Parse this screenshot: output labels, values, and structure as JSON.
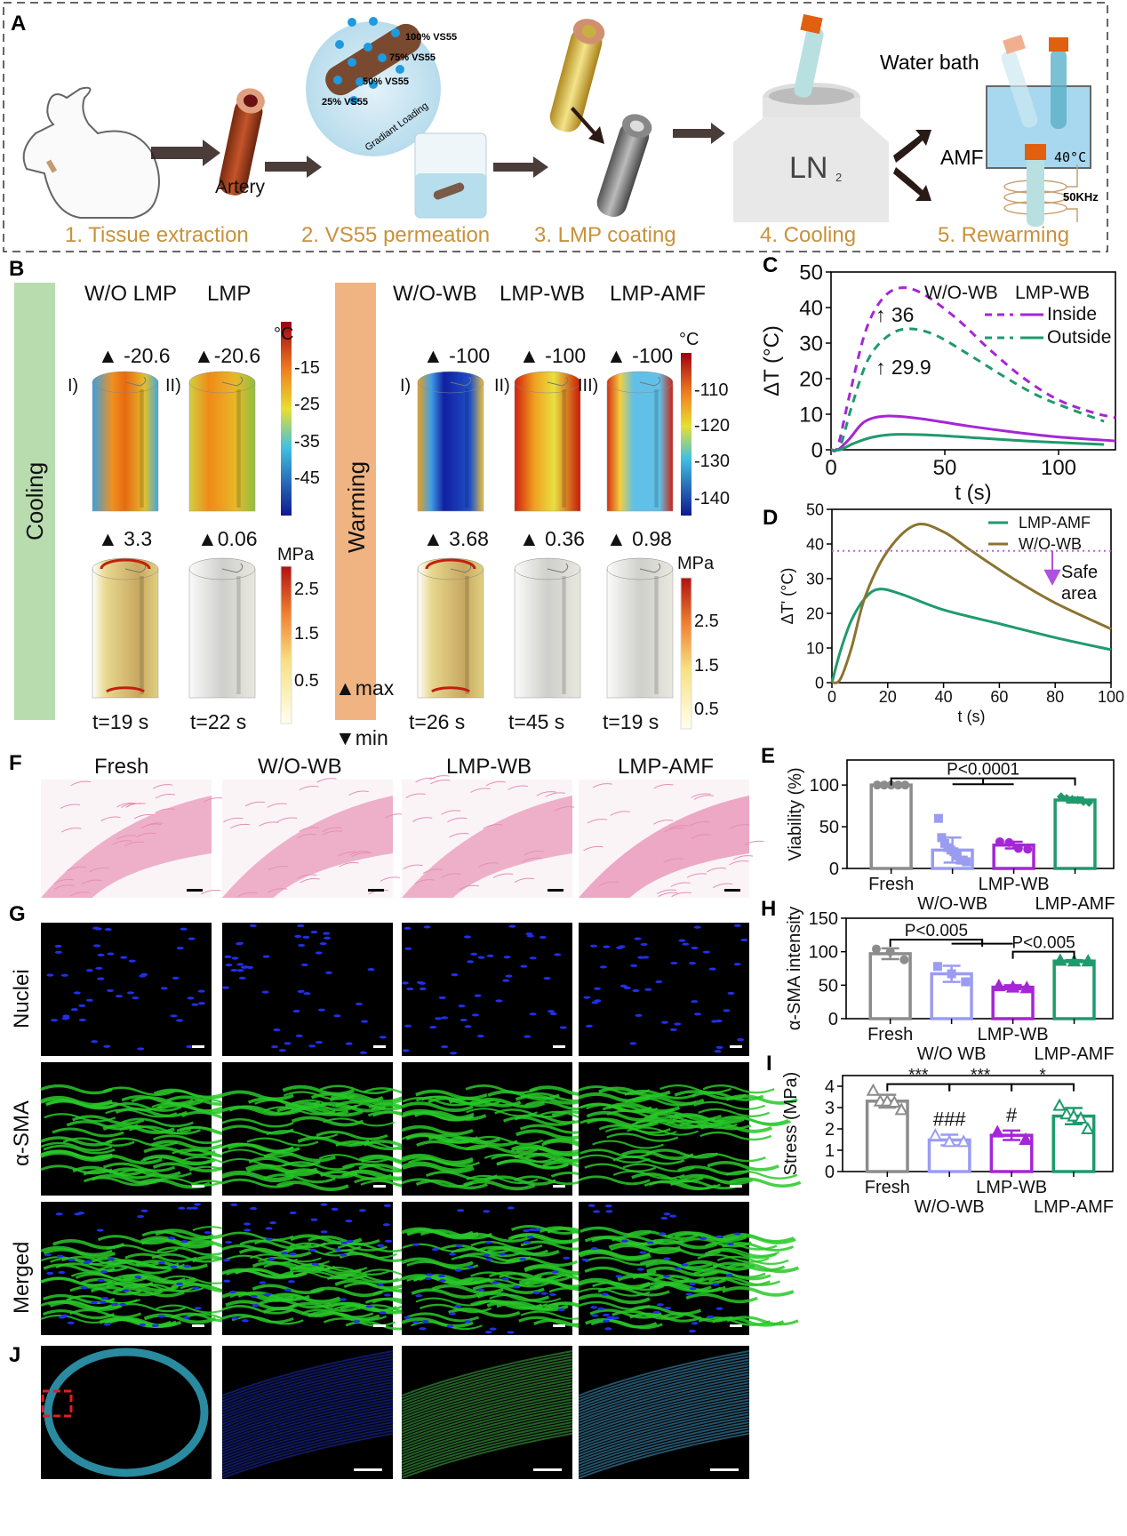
{
  "panel_labels": {
    "A": "A",
    "B": "B",
    "C": "C",
    "D": "D",
    "E": "E",
    "F": "F",
    "G": "G",
    "H": "H",
    "I": "I",
    "J": "J"
  },
  "panel_a": {
    "artery": "Artery",
    "vs55": [
      "100% VS55",
      "75% VS55",
      "50% VS55",
      "25% VS55"
    ],
    "gradient": "Gradiant  Loading",
    "ln2": "LN",
    "ln2_sub": "2",
    "water_bath": "Water bath",
    "temp_display": "40°C",
    "amf": "AMF",
    "freq": "50KHz",
    "steps": [
      "1. Tissue  extraction",
      "2. VS55 permeation",
      "3. LMP coating",
      "4. Cooling",
      "5. Rewarming"
    ],
    "step_color": "#c8923a"
  },
  "panel_b": {
    "cooling": "Cooling",
    "warming": "Warming",
    "cooling_headers": [
      "W/O LMP",
      "LMP"
    ],
    "warming_headers": [
      "W/O-WB",
      "LMP-WB",
      "LMP-AMF"
    ],
    "cooling_roman": [
      "I)",
      "II)"
    ],
    "warming_roman": [
      "I)",
      "II)",
      "III)"
    ],
    "cooling_temp_max": [
      "▲ -20.6",
      "▲-20.6"
    ],
    "warming_temp_max": [
      "▲ -100",
      "▲ -100",
      "▲ -100"
    ],
    "cooling_stress_max": [
      "▲ 3.3",
      "▲0.06"
    ],
    "warming_stress_max": [
      "▲ 3.68",
      "▲ 0.36",
      "▲ 0.98"
    ],
    "cooling_times": [
      "t=19 s",
      "t=22 s"
    ],
    "warming_times": [
      "t=26 s",
      "t=45 s",
      "t=19 s"
    ],
    "unit_c": "°C",
    "unit_mpa": "MPa",
    "cooling_temp_ticks": [
      "-15",
      "-25",
      "-35",
      "-45"
    ],
    "warming_temp_ticks": [
      "-110",
      "-120",
      "-130",
      "-140"
    ],
    "stress_ticks": [
      "2.5",
      "1.5",
      "0.5"
    ],
    "max": "▲max",
    "min": "▼min",
    "cooling_color": "#b9dcae",
    "warming_color": "#f0b482"
  },
  "panel_f": {
    "headers": [
      "Fresh",
      "W/O-WB",
      "LMP-WB",
      "LMP-AMF"
    ]
  },
  "panel_g": {
    "rows": [
      "Nuclei",
      "α-SMA",
      "Merged"
    ]
  },
  "chart_data": [
    {
      "id": "C",
      "type": "line",
      "xlabel": "t (s)",
      "ylabel": "ΔT (°C)",
      "xlim": [
        0,
        125
      ],
      "ylim": [
        0,
        50
      ],
      "xticks": [
        "0",
        "50",
        "100"
      ],
      "yticks": [
        "0",
        "10",
        "20",
        "30",
        "40",
        "50"
      ],
      "legend_headers": [
        "W/O-WB",
        "LMP-WB"
      ],
      "legend_rows": [
        "Inside",
        "Outside"
      ],
      "legend_placement": "top-right",
      "annotations": [
        {
          "text": "↑ 36",
          "color": "#a526d6"
        },
        {
          "text": "↑ 29.9",
          "color": "#1f9a6c"
        }
      ],
      "series": [
        {
          "group": "W/O-WB",
          "row": "Inside",
          "style": "dashed",
          "color": "#a526d6",
          "x": [
            0,
            3,
            8,
            15,
            22,
            30,
            40,
            55,
            70,
            85,
            100,
            115,
            125
          ],
          "y": [
            0,
            1,
            15,
            33,
            42,
            45.5,
            44,
            37,
            28,
            20,
            14,
            10.5,
            9
          ]
        },
        {
          "group": "W/O-WB",
          "row": "Outside",
          "style": "dashed",
          "color": "#1f9a6c",
          "x": [
            0,
            4,
            9,
            16,
            24,
            33,
            45,
            60,
            75,
            90,
            105,
            120
          ],
          "y": [
            0,
            1,
            12,
            25,
            31.5,
            34,
            32.5,
            27,
            21,
            15.5,
            11.5,
            8
          ]
        },
        {
          "group": "LMP-WB",
          "row": "Inside",
          "style": "solid",
          "color": "#a526d6",
          "x": [
            0,
            3,
            8,
            15,
            25,
            40,
            60,
            80,
            100,
            125
          ],
          "y": [
            0,
            0,
            3,
            8,
            9.5,
            8.7,
            6.7,
            5,
            3.6,
            2.5
          ]
        },
        {
          "group": "LMP-WB",
          "row": "Outside",
          "style": "solid",
          "color": "#1f9a6c",
          "x": [
            0,
            4,
            10,
            18,
            28,
            45,
            65,
            85,
            105,
            120
          ],
          "y": [
            0,
            0,
            1.8,
            3.5,
            4.3,
            4.1,
            3.3,
            2.5,
            1.9,
            1.5
          ]
        }
      ]
    },
    {
      "id": "D",
      "type": "line",
      "xlabel": "t (s)",
      "ylabel": "ΔT' (°C)",
      "xlim": [
        0,
        100
      ],
      "ylim": [
        0,
        50
      ],
      "xticks": [
        "0",
        "20",
        "40",
        "60",
        "80",
        "100"
      ],
      "yticks": [
        "0",
        "10",
        "20",
        "30",
        "40",
        "50"
      ],
      "legend_placement": "top-right",
      "threshold": 38,
      "threshold_color": "#c060e0",
      "annotation": [
        "Safe",
        "area"
      ],
      "series": [
        {
          "name": "LMP-AMF",
          "color": "#1f9a6c",
          "x": [
            0,
            3,
            7,
            12,
            17,
            25,
            40,
            60,
            80,
            100
          ],
          "y": [
            0,
            9,
            18,
            24.5,
            27,
            25.5,
            21,
            17,
            13,
            9.5
          ]
        },
        {
          "name": "W/O-WB",
          "color": "#8b7431",
          "x": [
            0,
            3,
            7,
            12,
            20,
            30,
            40,
            50,
            65,
            80,
            100
          ],
          "y": [
            0,
            1,
            10,
            25,
            38,
            45.5,
            43.5,
            38,
            30,
            23,
            15.5
          ]
        }
      ]
    },
    {
      "id": "E",
      "type": "bar",
      "ylabel": "Viability (%)",
      "ylim": [
        0,
        130
      ],
      "yticks": [
        0,
        50,
        100
      ],
      "categories": [
        "Fresh",
        "W/O-WB",
        "LMP-WB",
        "LMP-AMF"
      ],
      "colors": [
        "#8c8c8c",
        "#9a9cf2",
        "#a526d6",
        "#1f9a6c"
      ],
      "values": [
        100,
        22,
        28,
        82
      ],
      "sd": [
        0,
        15,
        4,
        3
      ],
      "points": [
        [
          100,
          100,
          100,
          100,
          100
        ],
        [
          60,
          37,
          30,
          25,
          22,
          20,
          15,
          10,
          10,
          8
        ],
        [
          32,
          31,
          24,
          23
        ],
        [
          86,
          84,
          83,
          82,
          80,
          79
        ]
      ],
      "marker": [
        "circle",
        "square",
        "circle",
        "diamond"
      ],
      "significance": [
        {
          "text": "P<0.0001",
          "from": 0,
          "to": 3,
          "level": 108,
          "sub": [
            1,
            2
          ],
          "sublevel": 101
        }
      ]
    },
    {
      "id": "H",
      "type": "bar",
      "ylabel": "α-SMA intensity",
      "ylim": [
        0,
        150
      ],
      "yticks": [
        0,
        50,
        100,
        150
      ],
      "categories": [
        "Fresh",
        "W/O WB",
        "LMP-WB",
        "LMP-AMF"
      ],
      "colors": [
        "#8c8c8c",
        "#9a9cf2",
        "#a526d6",
        "#1f9a6c"
      ],
      "values": [
        97,
        67,
        47,
        86
      ],
      "sd": [
        8,
        12,
        3,
        1.5
      ],
      "points": [
        [
          104,
          100,
          88
        ],
        [
          78,
          67,
          55
        ],
        [
          49,
          47,
          46
        ],
        [
          87,
          86,
          86
        ]
      ],
      "marker": [
        "circle",
        "square",
        "triangle",
        "triangle"
      ],
      "significance": [
        {
          "text": "P<0.005",
          "from": 0,
          "to": 1.5,
          "level": 118,
          "sub": [
            1,
            2
          ],
          "sublevel": 112
        },
        {
          "text": "P<0.005",
          "from": 2,
          "to": 3,
          "level": 100
        }
      ]
    },
    {
      "id": "I",
      "type": "bar",
      "ylabel": "Stress (MPa)",
      "ylim": [
        0,
        4.5
      ],
      "yticks": [
        0,
        1,
        2,
        3,
        4
      ],
      "categories": [
        "Fresh",
        "W/O-WB",
        "LMP-WB",
        "LMP-AMF"
      ],
      "colors": [
        "#8c8c8c",
        "#9a9cf2",
        "#a526d6",
        "#1f9a6c"
      ],
      "values": [
        3.3,
        1.48,
        1.7,
        2.6
      ],
      "sd": [
        0.3,
        0.25,
        0.22,
        0.38
      ],
      "points": [
        [
          3.8,
          3.3,
          3.3,
          3.25,
          2.9
        ],
        [
          1.7,
          1.4,
          1.4
        ],
        [
          1.85,
          1.5
        ],
        [
          3.1,
          2.7,
          2.6,
          2.5,
          2.0
        ]
      ],
      "marker": [
        "triangle-open",
        "triangle-open",
        "triangle",
        "triangle-open"
      ],
      "significance": [
        {
          "text": "***",
          "from": 0,
          "to": 1,
          "level": 4.1
        },
        {
          "text": "***",
          "from": 1,
          "to": 2,
          "level": 4.1
        },
        {
          "text": "*",
          "from": 2,
          "to": 3,
          "level": 4.1
        }
      ],
      "annotations": [
        {
          "text": "###",
          "category": 1
        },
        {
          "text": "#",
          "category": 2
        }
      ]
    }
  ]
}
